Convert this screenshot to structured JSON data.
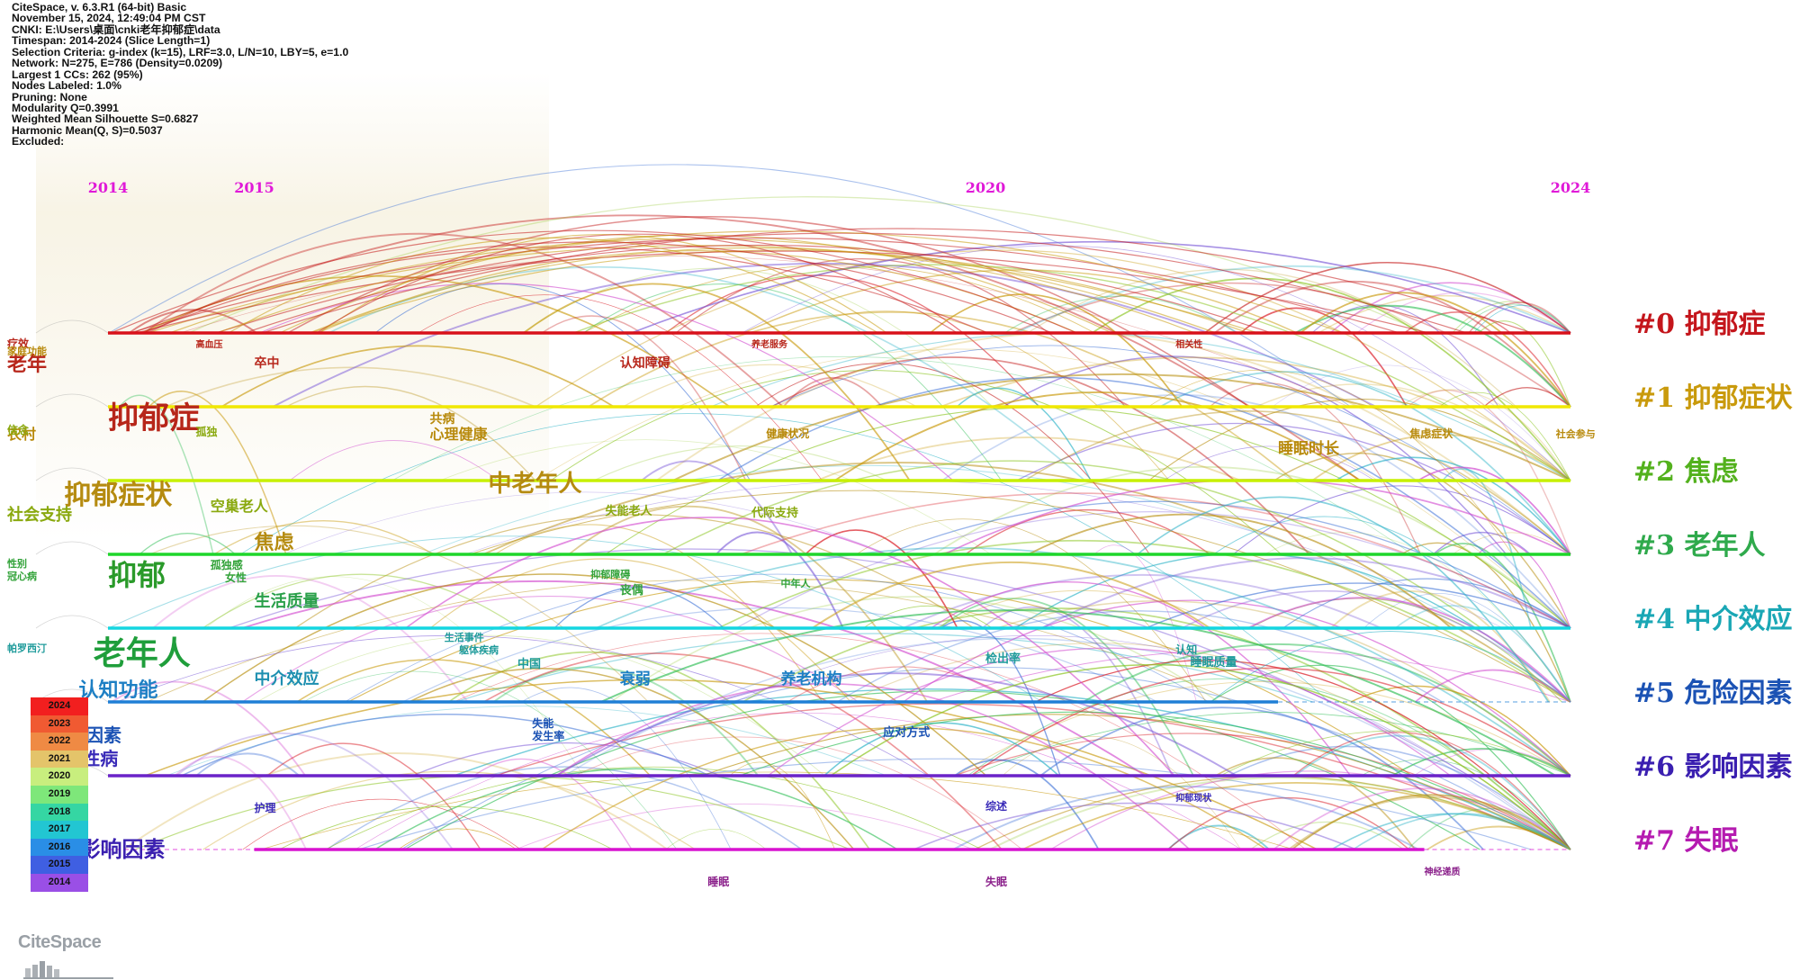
{
  "info_lines": [
    "CiteSpace, v. 6.3.R1 (64-bit) Basic",
    "November 15, 2024, 12:49:04 PM CST",
    "CNKI: E:\\Users\\桌面\\cnki老年抑郁症\\data",
    "Timespan: 2014-2024 (Slice Length=1)",
    "Selection Criteria: g-index (k=15), LRF=3.0, L/N=10, LBY=5, e=1.0",
    "Network: N=275, E=786 (Density=0.0209)",
    "Largest 1 CCs: 262 (95%)",
    "Nodes Labeled: 1.0%",
    "Pruning: None",
    "Modularity Q=0.3991",
    "Weighted Mean Silhouette S=0.6827",
    "Harmonic Mean(Q, S)=0.5037",
    "Excluded:"
  ],
  "logo": "CiteSpace",
  "legend": [
    {
      "year": "2024",
      "color": "#f21f1f"
    },
    {
      "year": "2023",
      "color": "#f05a32"
    },
    {
      "year": "2022",
      "color": "#ef8a44"
    },
    {
      "year": "2021",
      "color": "#e4c46a"
    },
    {
      "year": "2020",
      "color": "#c8ee7e"
    },
    {
      "year": "2019",
      "color": "#7ee77a"
    },
    {
      "year": "2018",
      "color": "#35d6a3"
    },
    {
      "year": "2017",
      "color": "#22c6d2"
    },
    {
      "year": "2016",
      "color": "#2a8ee6"
    },
    {
      "year": "2015",
      "color": "#3f5fe2"
    },
    {
      "year": "2014",
      "color": "#9a4fe6"
    }
  ],
  "chart_data": {
    "type": "timeline",
    "x_ticks": [
      "2014",
      "2015",
      "2020",
      "2024"
    ],
    "x_range": [
      2014,
      2024
    ],
    "clusters": [
      {
        "id": "#0 抑郁症",
        "color": "#d8101a",
        "start": 2014,
        "end": 2024
      },
      {
        "id": "#1 抑郁症状",
        "color": "#f0e800",
        "start": 2014,
        "end": 2024
      },
      {
        "id": "#2 焦虑",
        "color": "#c7f000",
        "start": 2014,
        "end": 2024
      },
      {
        "id": "#3 老年人",
        "color": "#1ed62a",
        "start": 2014,
        "end": 2024
      },
      {
        "id": "#4 中介效应",
        "color": "#13d6e0",
        "start": 2014,
        "end": 2024
      },
      {
        "id": "#5 危险因素",
        "color": "#1f7fd6",
        "start": 2014,
        "end": 2022
      },
      {
        "id": "#6 影响因素",
        "color": "#6a23c8",
        "start": 2014,
        "end": 2024
      },
      {
        "id": "#7 失眠",
        "color": "#d813d0",
        "start": 2015,
        "end": 2023
      }
    ],
    "cluster_label_colors": [
      "#c4161c",
      "#c99a0c",
      "#53b11d",
      "#2faa4c",
      "#1aa7b5",
      "#1b52b4",
      "#3a1fb0",
      "#b51bb0"
    ],
    "keywords": [
      {
        "text": "疗效",
        "x": 2013.2,
        "row": 0,
        "size": 12,
        "color": "#b8271c"
      },
      {
        "text": "老年",
        "x": 2013.3,
        "row": 0,
        "size": 22,
        "color": "#b8271c",
        "dy": 42
      },
      {
        "text": "高血压",
        "x": 2014.6,
        "row": 0,
        "size": 10,
        "color": "#b8271c"
      },
      {
        "text": "卒中",
        "x": 2015.0,
        "row": 0,
        "size": 14,
        "color": "#b8271c",
        "dy": 38
      },
      {
        "text": "认知障碍",
        "x": 2017.5,
        "row": 0,
        "size": 14,
        "color": "#b8271c",
        "dy": 38
      },
      {
        "text": "养老服务",
        "x": 2018.4,
        "row": 0,
        "size": 10,
        "color": "#b8271c"
      },
      {
        "text": "相关性",
        "x": 2021.3,
        "row": 0,
        "size": 10,
        "color": "#b8271c"
      },
      {
        "text": "家庭功能",
        "x": 2013.2,
        "row": 1,
        "size": 11,
        "color": "#b88a0c",
        "dy": -58
      },
      {
        "text": "抑郁症",
        "x": 2014.0,
        "row": 1,
        "size": 34,
        "color": "#b7261a",
        "dy": 24
      },
      {
        "text": "农村",
        "x": 2013.2,
        "row": 1,
        "size": 16,
        "color": "#b88a0c",
        "dy": 36
      },
      {
        "text": "共病",
        "x": 2016.2,
        "row": 1,
        "size": 14,
        "color": "#b88a0c",
        "dy": 18
      },
      {
        "text": "心理健康",
        "x": 2016.2,
        "row": 1,
        "size": 16,
        "color": "#b88a0c",
        "dy": 36
      },
      {
        "text": "健康状况",
        "x": 2018.5,
        "row": 1,
        "size": 12,
        "color": "#b88a0c",
        "dy": 34
      },
      {
        "text": "睡眠时长",
        "x": 2022.0,
        "row": 1,
        "size": 17,
        "color": "#b88a0c",
        "dy": 52
      },
      {
        "text": "焦虑症状",
        "x": 2022.9,
        "row": 1,
        "size": 12,
        "color": "#b88a0c",
        "dy": 34
      },
      {
        "text": "社会参与",
        "x": 2023.9,
        "row": 1,
        "size": 11,
        "color": "#b88a0c",
        "dy": 34
      },
      {
        "text": "信念",
        "x": 2013.2,
        "row": 2,
        "size": 12,
        "color": "#8aa90f",
        "dy": -52
      },
      {
        "text": "抑郁症状",
        "x": 2013.7,
        "row": 2,
        "size": 30,
        "color": "#b58b10",
        "dy": 26
      },
      {
        "text": "孤独",
        "x": 2014.6,
        "row": 2,
        "size": 12,
        "color": "#8aa90f",
        "dy": -50
      },
      {
        "text": "空巢老人",
        "x": 2014.7,
        "row": 2,
        "size": 16,
        "color": "#8aa90f",
        "dy": 34
      },
      {
        "text": "社会支持",
        "x": 2013.2,
        "row": 2,
        "size": 18,
        "color": "#8aa90f",
        "dy": 44
      },
      {
        "text": "中老年人",
        "x": 2016.6,
        "row": 2,
        "size": 26,
        "color": "#b58b10",
        "dy": 12
      },
      {
        "text": "失能老人",
        "x": 2017.4,
        "row": 2,
        "size": 13,
        "color": "#8aa90f",
        "dy": 38
      },
      {
        "text": "代际支持",
        "x": 2018.4,
        "row": 2,
        "size": 13,
        "color": "#8aa90f",
        "dy": 40
      },
      {
        "text": "焦虑",
        "x": 2015.0,
        "row": 3,
        "size": 22,
        "color": "#b58b10",
        "dy": -6
      },
      {
        "text": "性别",
        "x": 2013.2,
        "row": 3,
        "size": 11,
        "color": "#33a33a",
        "dy": 14
      },
      {
        "text": "冠心病",
        "x": 2013.2,
        "row": 3,
        "size": 11,
        "color": "#33a33a",
        "dy": 28
      },
      {
        "text": "抑郁",
        "x": 2014.0,
        "row": 3,
        "size": 32,
        "color": "#2a9a2a",
        "dy": 34
      },
      {
        "text": "孤独感",
        "x": 2014.7,
        "row": 3,
        "size": 12,
        "color": "#33a33a",
        "dy": 16
      },
      {
        "text": "女性",
        "x": 2014.8,
        "row": 3,
        "size": 12,
        "color": "#33a33a",
        "dy": 30
      },
      {
        "text": "抑郁障碍",
        "x": 2017.3,
        "row": 3,
        "size": 11,
        "color": "#33a33a",
        "dy": 26
      },
      {
        "text": "丧偶",
        "x": 2017.5,
        "row": 3,
        "size": 13,
        "color": "#33a33a",
        "dy": 44
      },
      {
        "text": "中年人",
        "x": 2018.6,
        "row": 3,
        "size": 11,
        "color": "#33a33a",
        "dy": 36
      },
      {
        "text": "生活质量",
        "x": 2015.0,
        "row": 4,
        "size": 18,
        "color": "#2aa04a",
        "dy": -24
      },
      {
        "text": "帕罗西汀",
        "x": 2013.2,
        "row": 4,
        "size": 11,
        "color": "#1f9b9b",
        "dy": 26
      },
      {
        "text": "老年人",
        "x": 2013.9,
        "row": 4,
        "size": 36,
        "color": "#1f9e3b",
        "dy": 40
      },
      {
        "text": "生活事件",
        "x": 2016.3,
        "row": 4,
        "size": 11,
        "color": "#1f9b9b",
        "dy": 14
      },
      {
        "text": "躯体疾病",
        "x": 2016.4,
        "row": 4,
        "size": 11,
        "color": "#1f9b9b",
        "dy": 28
      },
      {
        "text": "中国",
        "x": 2016.8,
        "row": 4,
        "size": 13,
        "color": "#1f9b9b",
        "dy": 44
      },
      {
        "text": "检出率",
        "x": 2020.0,
        "row": 4,
        "size": 13,
        "color": "#1f9b9b",
        "dy": 38
      },
      {
        "text": "认知",
        "x": 2021.3,
        "row": 4,
        "size": 12,
        "color": "#1f9b9b",
        "dy": 28
      },
      {
        "text": "睡眠质量",
        "x": 2021.4,
        "row": 4,
        "size": 13,
        "color": "#1f9b9b",
        "dy": 42
      },
      {
        "text": "认知功能",
        "x": 2013.8,
        "row": 5,
        "size": 22,
        "color": "#1d7fc4",
        "dy": -6
      },
      {
        "text": "中介效应",
        "x": 2015.0,
        "row": 5,
        "size": 18,
        "color": "#1d8fb0",
        "dy": -20
      },
      {
        "text": "衰弱",
        "x": 2017.5,
        "row": 5,
        "size": 17,
        "color": "#1d7fc4",
        "dy": -20
      },
      {
        "text": "养老机构",
        "x": 2018.6,
        "row": 5,
        "size": 17,
        "color": "#1d7fc4",
        "dy": -20
      },
      {
        "text": "危险因素",
        "x": 2013.6,
        "row": 5,
        "size": 20,
        "color": "#1b52b4",
        "dy": 44
      },
      {
        "text": "失能",
        "x": 2016.9,
        "row": 5,
        "size": 12,
        "color": "#1b52b4",
        "dy": 28
      },
      {
        "text": "发生率",
        "x": 2016.9,
        "row": 5,
        "size": 12,
        "color": "#1b52b4",
        "dy": 42
      },
      {
        "text": "应对方式",
        "x": 2019.3,
        "row": 5,
        "size": 13,
        "color": "#1b52b4",
        "dy": 38
      },
      {
        "text": "慢性病",
        "x": 2013.7,
        "row": 6,
        "size": 20,
        "color": "#3a2bb8",
        "dy": -12
      },
      {
        "text": "护理",
        "x": 2015.0,
        "row": 6,
        "size": 12,
        "color": "#3a2bb8",
        "dy": 40
      },
      {
        "text": "综述",
        "x": 2020.0,
        "row": 6,
        "size": 12,
        "color": "#3a2bb8",
        "dy": 38
      },
      {
        "text": "抑郁现状",
        "x": 2021.3,
        "row": 6,
        "size": 10,
        "color": "#3a2bb8",
        "dy": 28
      },
      {
        "text": "影响因素",
        "x": 2013.8,
        "row": 7,
        "size": 24,
        "color": "#3a1fb0",
        "dy": 8
      },
      {
        "text": "睡眠",
        "x": 2018.1,
        "row": 7,
        "size": 12,
        "color": "#8a1f8a",
        "dy": 40
      },
      {
        "text": "失眠",
        "x": 2020.0,
        "row": 7,
        "size": 12,
        "color": "#8a1f8a",
        "dy": 40
      },
      {
        "text": "神经递质",
        "x": 2023.0,
        "row": 7,
        "size": 10,
        "color": "#8a1f8a",
        "dy": 28
      }
    ]
  }
}
